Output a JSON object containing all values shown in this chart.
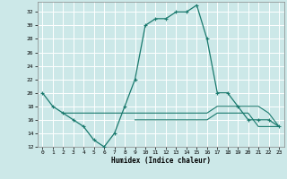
{
  "title": "",
  "xlabel": "Humidex (Indice chaleur)",
  "bg_color": "#cce8e8",
  "grid_color": "#ffffff",
  "line_color": "#1a7a6e",
  "xlim": [
    -0.5,
    23.5
  ],
  "ylim": [
    12,
    33.5
  ],
  "yticks": [
    12,
    14,
    16,
    18,
    20,
    22,
    24,
    26,
    28,
    30,
    32
  ],
  "xticks": [
    0,
    1,
    2,
    3,
    4,
    5,
    6,
    7,
    8,
    9,
    10,
    11,
    12,
    13,
    14,
    15,
    16,
    17,
    18,
    19,
    20,
    21,
    22,
    23
  ],
  "series1_x": [
    0,
    1,
    2,
    3,
    4,
    5,
    6,
    7,
    8,
    9,
    10,
    11,
    12,
    13,
    14,
    15,
    16,
    17,
    18,
    19,
    20,
    21,
    22,
    23
  ],
  "series1_y": [
    20,
    18,
    17,
    16,
    15,
    13,
    12,
    14,
    18,
    22,
    30,
    31,
    31,
    32,
    32,
    33,
    28,
    20,
    20,
    18,
    16,
    16,
    16,
    15
  ],
  "series2_x": [
    2,
    3,
    4,
    5,
    6,
    7,
    8,
    9,
    10,
    11,
    12,
    13,
    14,
    15,
    16,
    17,
    18,
    19,
    20,
    21,
    22,
    23
  ],
  "series2_y": [
    17,
    17,
    17,
    17,
    17,
    17,
    17,
    17,
    17,
    17,
    17,
    17,
    17,
    17,
    17,
    18,
    18,
    18,
    18,
    18,
    17,
    15
  ],
  "series3_x": [
    9,
    10,
    11,
    12,
    13,
    14,
    15,
    16,
    17,
    18,
    19,
    20,
    21,
    22,
    23
  ],
  "series3_y": [
    16,
    16,
    16,
    16,
    16,
    16,
    16,
    16,
    17,
    17,
    17,
    17,
    15,
    15,
    15
  ]
}
